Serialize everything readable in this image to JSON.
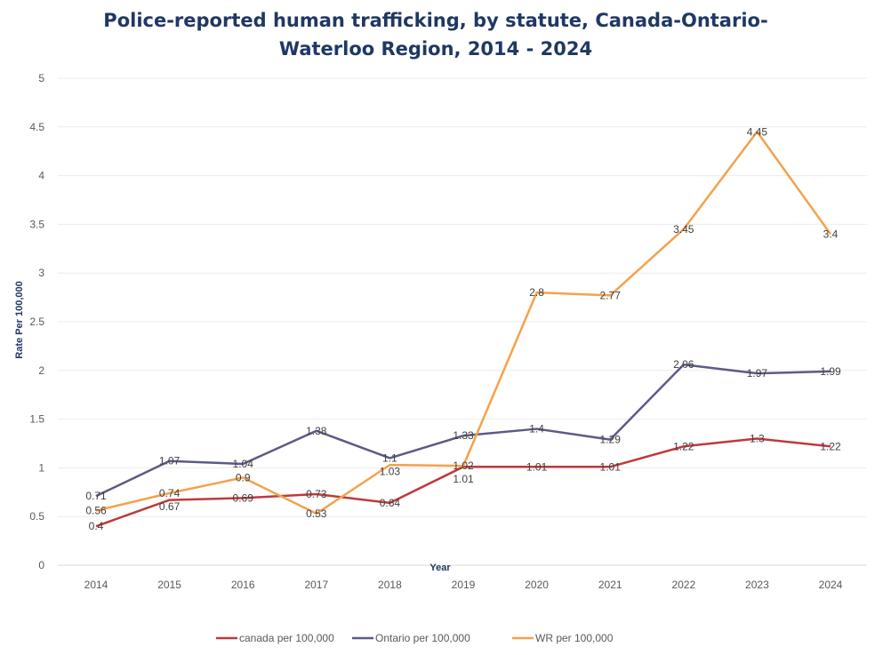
{
  "chart_data": {
    "type": "line",
    "title_lines": [
      "Police-reported human trafficking, by statute, Canada-Ontario-",
      "Waterloo Region, 2014 - 2024"
    ],
    "xlabel": "Year",
    "ylabel": "Rate Per 100,000",
    "ylim": [
      0,
      5
    ],
    "yticks": [
      "0",
      "0.5",
      "1",
      "1.5",
      "2",
      "2.5",
      "3",
      "3.5",
      "4",
      "4.5",
      "5"
    ],
    "categories": [
      "2014",
      "2015",
      "2016",
      "2017",
      "2018",
      "2019",
      "2020",
      "2021",
      "2022",
      "2023",
      "2024"
    ],
    "grid": true,
    "legend_position": "bottom",
    "series": [
      {
        "name": "canada per 100,000",
        "color": "#c0393b",
        "values": [
          0.4,
          0.67,
          0.69,
          0.73,
          0.64,
          1.01,
          1.01,
          1.01,
          1.22,
          1.3,
          1.22
        ]
      },
      {
        "name": "Ontario per 100,000",
        "color": "#5b5b86",
        "values": [
          0.71,
          1.07,
          1.04,
          1.38,
          1.1,
          1.33,
          1.4,
          1.29,
          2.06,
          1.97,
          1.99
        ]
      },
      {
        "name": "WR per 100,000",
        "color": "#f4a24b",
        "values": [
          0.56,
          0.74,
          0.9,
          0.53,
          1.03,
          1.02,
          2.8,
          2.77,
          3.45,
          4.45,
          3.4
        ]
      }
    ]
  }
}
